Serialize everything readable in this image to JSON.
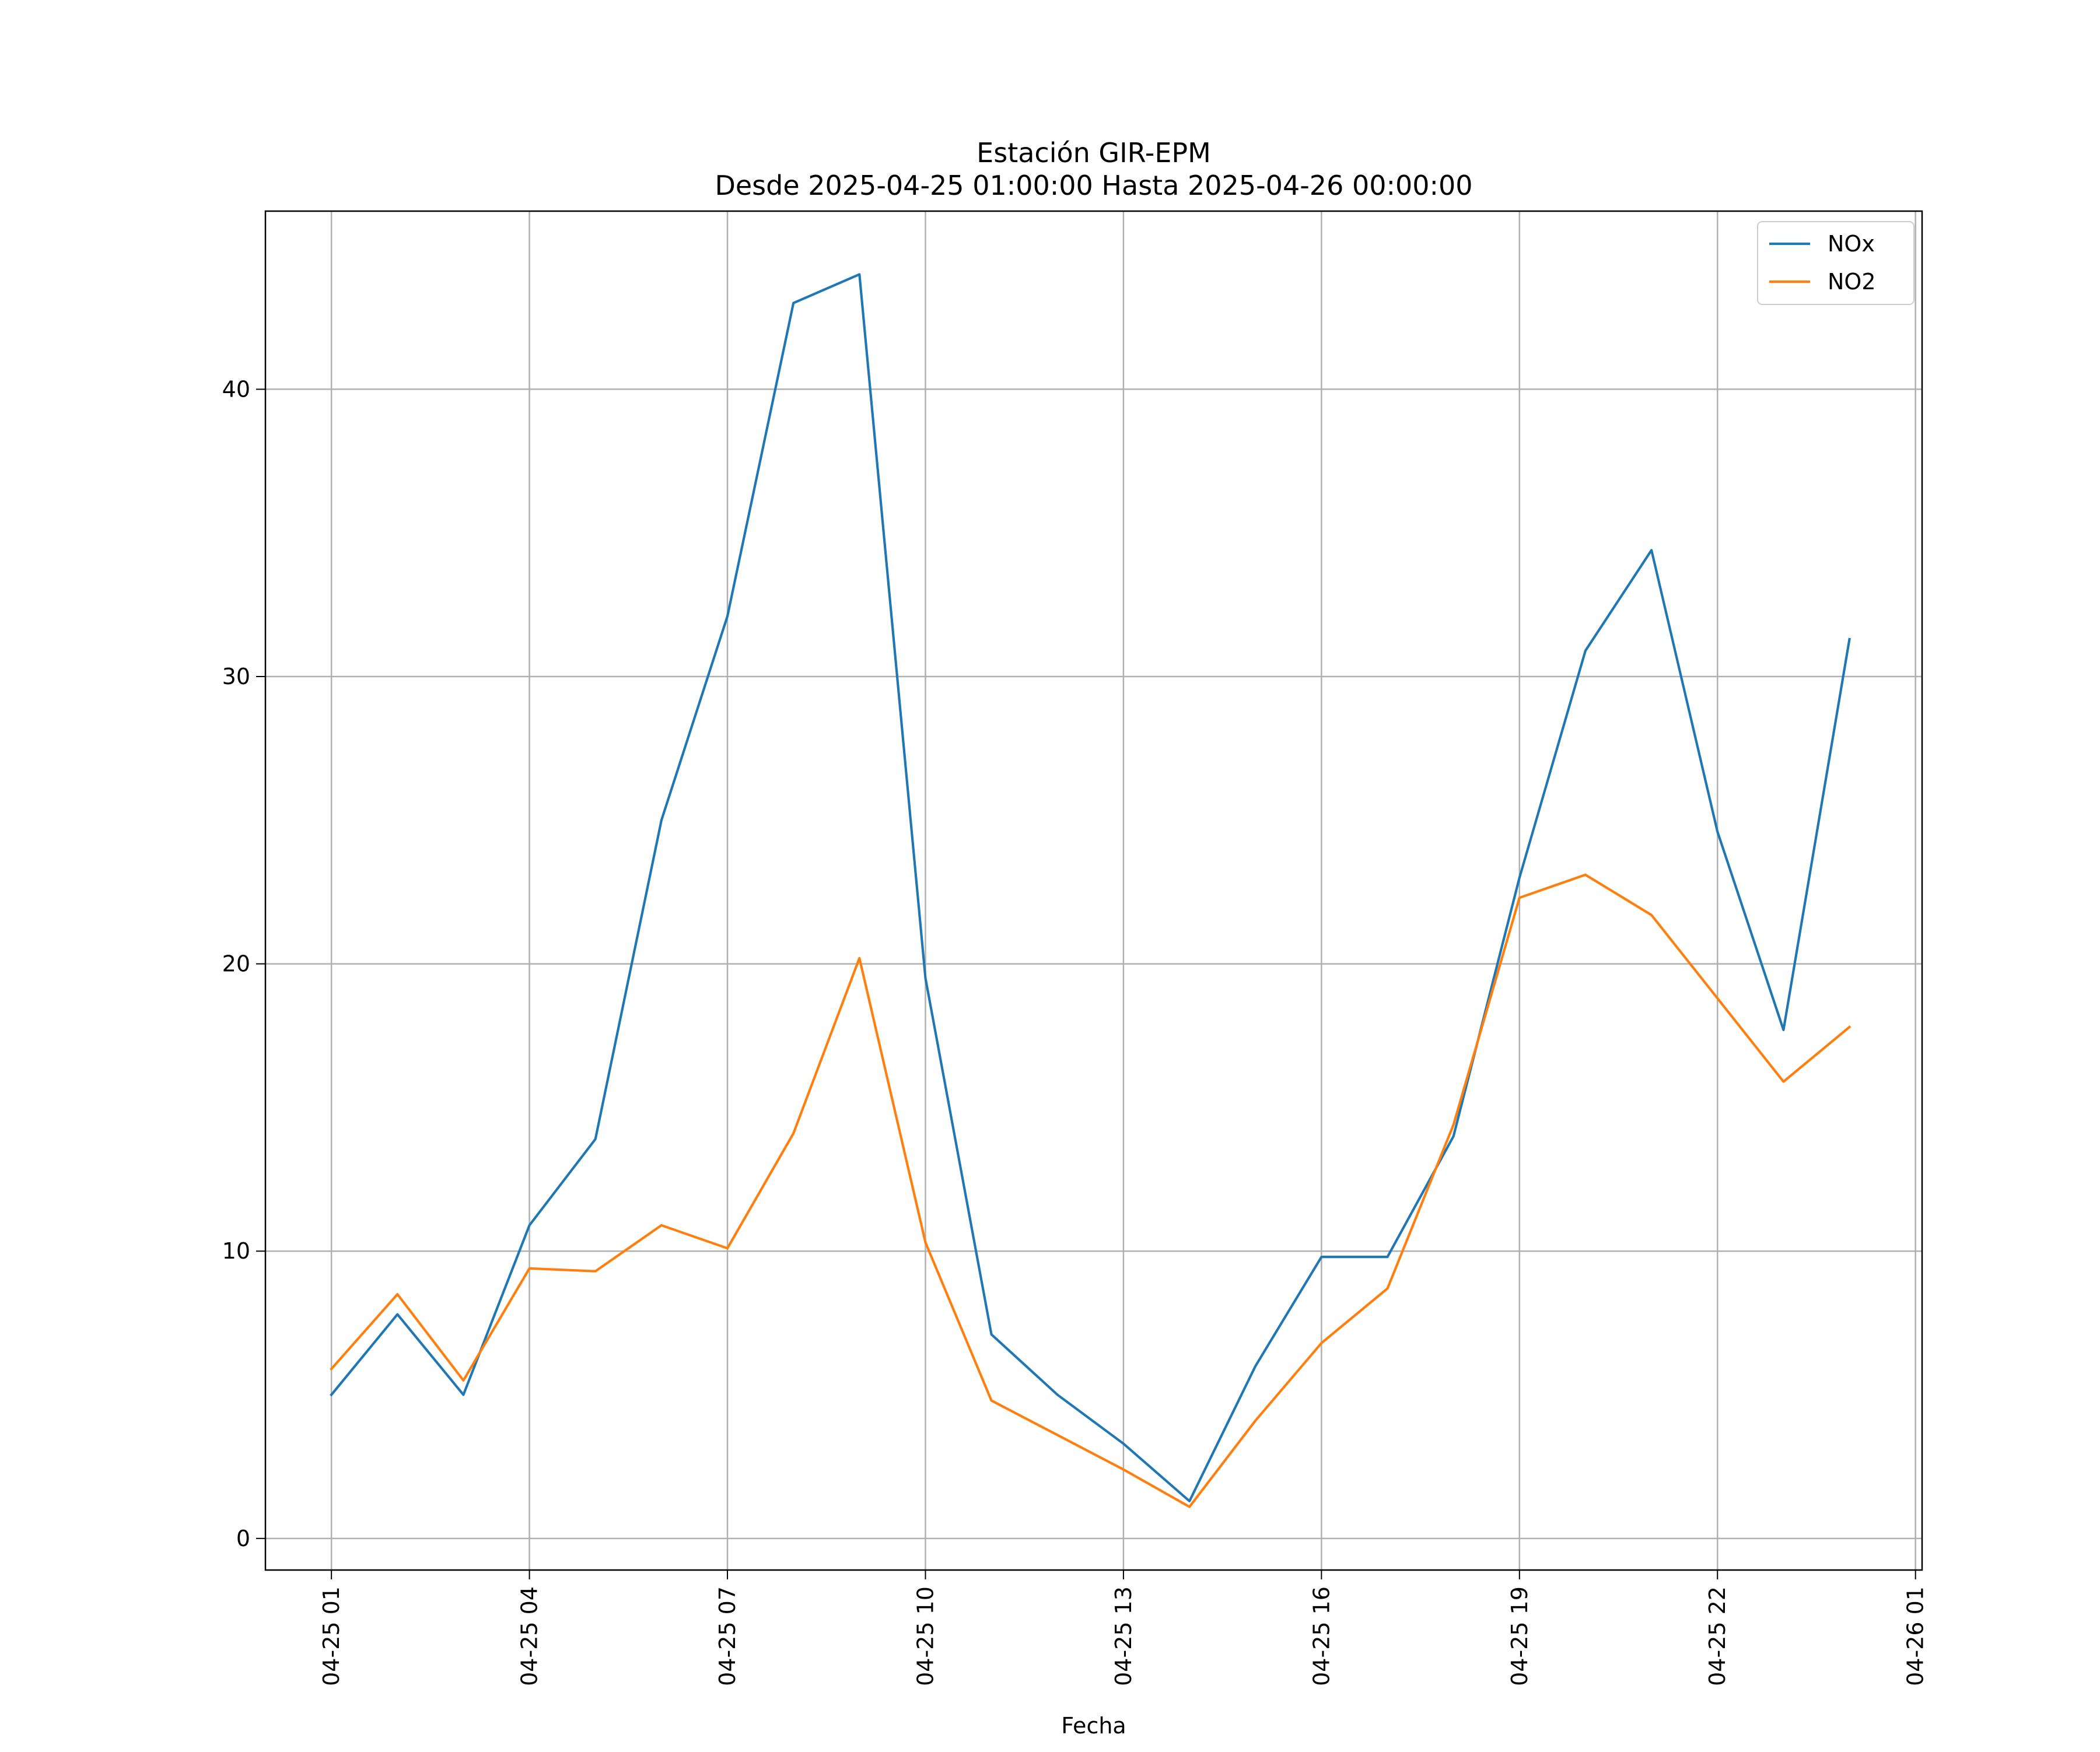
{
  "chart_data": {
    "type": "line",
    "title": "Estación GIR-EPM",
    "subtitle": "Desde 2025-04-25 01:00:00 Hasta 2025-04-26 00:00:00",
    "xlabel": "Fecha",
    "ylabel": "",
    "x": [
      "2025-04-25 01:00",
      "2025-04-25 02:00",
      "2025-04-25 03:00",
      "2025-04-25 04:00",
      "2025-04-25 05:00",
      "2025-04-25 06:00",
      "2025-04-25 07:00",
      "2025-04-25 08:00",
      "2025-04-25 09:00",
      "2025-04-25 10:00",
      "2025-04-25 11:00",
      "2025-04-25 12:00",
      "2025-04-25 13:00",
      "2025-04-25 14:00",
      "2025-04-25 15:00",
      "2025-04-25 16:00",
      "2025-04-25 17:00",
      "2025-04-25 18:00",
      "2025-04-25 19:00",
      "2025-04-25 20:00",
      "2025-04-25 21:00",
      "2025-04-25 22:00",
      "2025-04-25 23:00",
      "2025-04-26 00:00"
    ],
    "series": [
      {
        "name": "NOx",
        "color": "#1f77b4",
        "values": [
          5.0,
          7.8,
          5.0,
          10.9,
          13.9,
          25.0,
          32.1,
          43.0,
          44.0,
          19.5,
          7.1,
          5.0,
          3.3,
          1.3,
          6.0,
          9.8,
          9.8,
          14.0,
          23.0,
          30.9,
          34.4,
          24.6,
          17.7,
          31.3
        ]
      },
      {
        "name": "NO2",
        "color": "#ff7f0e",
        "values": [
          5.9,
          8.5,
          5.5,
          9.4,
          9.3,
          10.9,
          10.1,
          14.1,
          20.2,
          10.3,
          4.8,
          3.6,
          2.4,
          1.1,
          4.1,
          6.8,
          8.7,
          14.4,
          22.3,
          23.1,
          21.7,
          18.8,
          15.9,
          17.8
        ]
      }
    ],
    "x_ticks": [
      "04-25 01",
      "04-25 04",
      "04-25 07",
      "04-25 10",
      "04-25 13",
      "04-25 16",
      "04-25 19",
      "04-25 22",
      "04-26 01"
    ],
    "y_ticks": [
      0,
      10,
      20,
      30,
      40
    ],
    "xlim": [
      "2025-04-25 00:00",
      "2025-04-26 01:06"
    ],
    "ylim": [
      -1.1,
      46.2
    ],
    "grid": true,
    "legend_position": "top-right"
  }
}
